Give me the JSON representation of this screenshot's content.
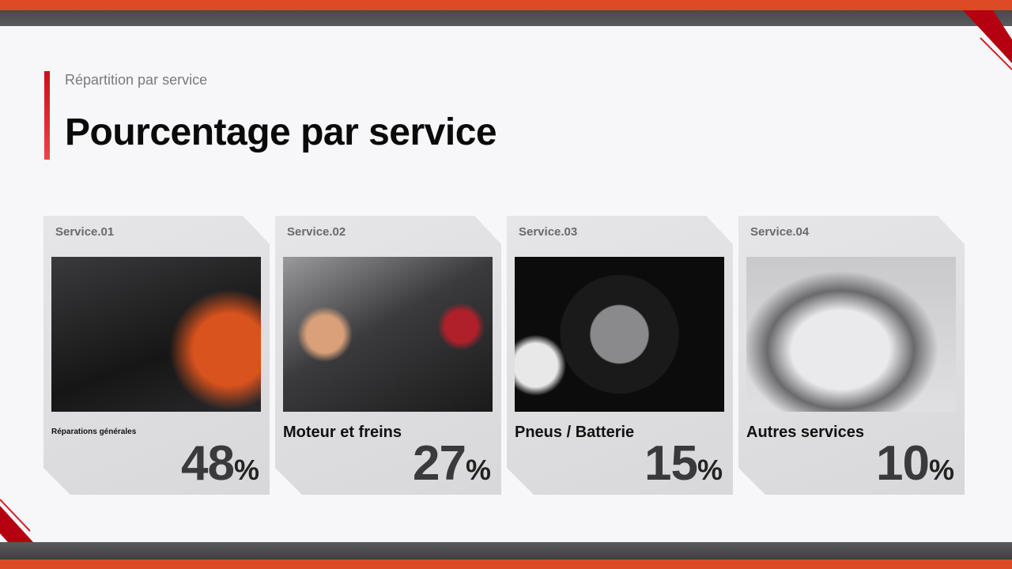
{
  "header": {
    "subtitle": "Répartition par service",
    "title": "Pourcentage par service"
  },
  "colors": {
    "accent_orange": "#dc4a26",
    "accent_red": "#c8101c",
    "dark_band": "#4a494b"
  },
  "cards": [
    {
      "label": "Service.01",
      "name": "Réparations générales",
      "value": "48",
      "unit": "%",
      "image": "mechanic-multimeter-engine-photo"
    },
    {
      "label": "Service.02",
      "name": "Moteur et freins",
      "value": "27",
      "unit": "%",
      "image": "engine-bay-photo"
    },
    {
      "label": "Service.03",
      "name": "Pneus / Batterie",
      "value": "15",
      "unit": "%",
      "image": "tire-wheel-impact-wrench-photo"
    },
    {
      "label": "Service.04",
      "name": "Autres services",
      "value": "10",
      "unit": "%",
      "image": "car-foam-wash-photo"
    }
  ]
}
